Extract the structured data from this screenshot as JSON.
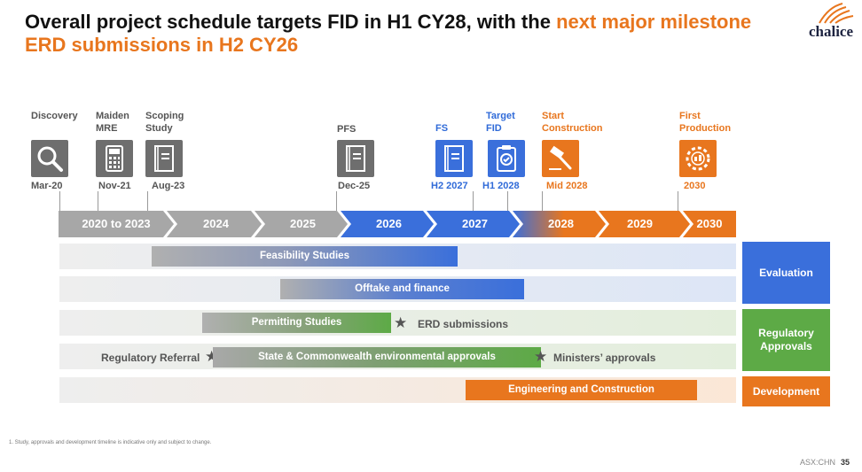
{
  "title": {
    "part1": "Overall project schedule targets FID in H1 CY28, with the ",
    "part2": "next major milestone ERD submissions in H2 CY26"
  },
  "logo": {
    "text": "chalice"
  },
  "colors": {
    "orange": "#E8761E",
    "blue": "#3A6FDB",
    "green": "#5DAA46",
    "grey": "#A7A7A7"
  },
  "milestones": [
    {
      "line1": "Discovery",
      "line2": "",
      "icon": "magnifier-icon",
      "date": "Mar-20"
    },
    {
      "line1": "Maiden",
      "line2": "MRE",
      "icon": "calculator-icon",
      "date": "Nov-21"
    },
    {
      "line1": "Scoping",
      "line2": "Study",
      "icon": "document-icon",
      "date": "Aug-23"
    },
    {
      "line1": "PFS",
      "line2": "",
      "icon": "document-icon",
      "date": "Dec-25"
    },
    {
      "line1": "FS",
      "line2": "",
      "icon": "document-icon",
      "date": "H2 2027"
    },
    {
      "line1": "Target",
      "line2": "FID",
      "icon": "clipboard-check-icon",
      "date": "H1 2028"
    },
    {
      "line1": "Start",
      "line2": "Construction",
      "icon": "hammer-icon",
      "date": "Mid 2028"
    },
    {
      "line1": "First",
      "line2": "Production",
      "icon": "gear-factory-icon",
      "date": "2030"
    }
  ],
  "years": [
    "2020 to 2023",
    "2024",
    "2025",
    "2026",
    "2027",
    "2028",
    "2029",
    "2030"
  ],
  "bars": {
    "feasibility": "Feasibility Studies",
    "offtake": "Offtake and finance",
    "permitting": "Permitting Studies",
    "erd": "ERD submissions",
    "referral": "Regulatory Referral",
    "state": "State & Commonwealth environmental approvals",
    "ministers": "Ministers’ approvals",
    "engineering": "Engineering and Construction"
  },
  "categories": {
    "evaluation": "Evaluation",
    "regulatory": "Regulatory Approvals",
    "development": "Development"
  },
  "footnote": "1. Study, approvals and development timeline is indicative only and subject to change.",
  "footer": {
    "ticker": "ASX:CHN",
    "page": "35"
  }
}
